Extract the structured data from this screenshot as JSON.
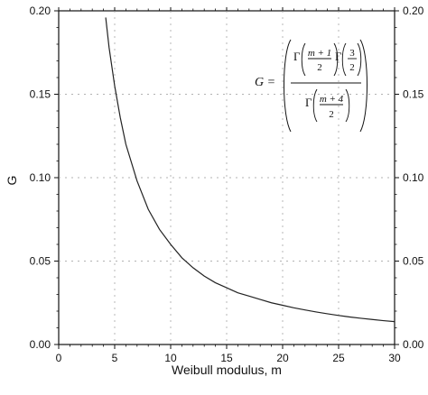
{
  "chart_data": {
    "type": "line",
    "title": "",
    "xlabel": "Weibull modulus,  m",
    "ylabel": "G",
    "xlim": [
      0,
      30
    ],
    "ylim": [
      0,
      0.2
    ],
    "x_ticks": [
      0,
      5,
      10,
      15,
      20,
      25,
      30
    ],
    "x_tick_labels": [
      "0",
      "5",
      "10",
      "15",
      "20",
      "25",
      "30"
    ],
    "y_ticks": [
      0.0,
      0.05,
      0.1,
      0.15,
      0.2
    ],
    "y_tick_labels": [
      "0.00",
      "0.05",
      "0.10",
      "0.15",
      "0.20"
    ],
    "y_ticks_right_labels": [
      "0.00",
      "0.05",
      "0.10",
      "0.15",
      "0.20"
    ],
    "grid": true,
    "grid_style": "dotted",
    "line_color": "#222222",
    "series": [
      {
        "x": [
          4.2,
          4.5,
          5,
          5.5,
          6,
          7,
          8,
          9,
          10,
          11,
          12,
          13,
          14,
          15,
          16,
          17,
          18,
          19,
          20,
          21,
          22,
          23,
          24,
          25,
          26,
          27,
          28,
          29,
          30
        ],
        "y": [
          0.196,
          0.178,
          0.155,
          0.136,
          0.12,
          0.098,
          0.081,
          0.069,
          0.06,
          0.052,
          0.046,
          0.041,
          0.037,
          0.034,
          0.031,
          0.029,
          0.027,
          0.025,
          0.0235,
          0.022,
          0.0207,
          0.0195,
          0.0184,
          0.0174,
          0.0165,
          0.0157,
          0.015,
          0.0143,
          0.0137
        ]
      }
    ],
    "annotation": {
      "lhs": "G =",
      "gamma": "Γ",
      "num1_top": "m + 1",
      "num1_bottom": "2",
      "num2_top": "3",
      "num2_bottom": "2",
      "den_top": "m + 4",
      "den_bottom": "2"
    }
  }
}
